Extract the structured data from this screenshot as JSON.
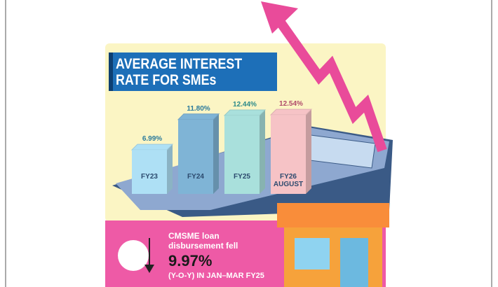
{
  "chart_data": {
    "type": "bar",
    "title": "AVERAGE INTEREST RATE FOR SMEs",
    "categories": [
      "FY23",
      "FY24",
      "FY25",
      "FY26 AUGUST"
    ],
    "values": [
      6.99,
      11.8,
      12.44,
      12.54
    ],
    "value_labels": [
      "6.99%",
      "11.80%",
      "12.44%",
      "12.54%"
    ],
    "colors": [
      "#aee0f5",
      "#7fb4d6",
      "#a9e0dc",
      "#f6c3c6"
    ],
    "annotation": {
      "text": "CMSME loan disbursement fell",
      "value": "9.97%",
      "note": "(Y-O-Y) IN JAN–MAR FY25"
    }
  }
}
